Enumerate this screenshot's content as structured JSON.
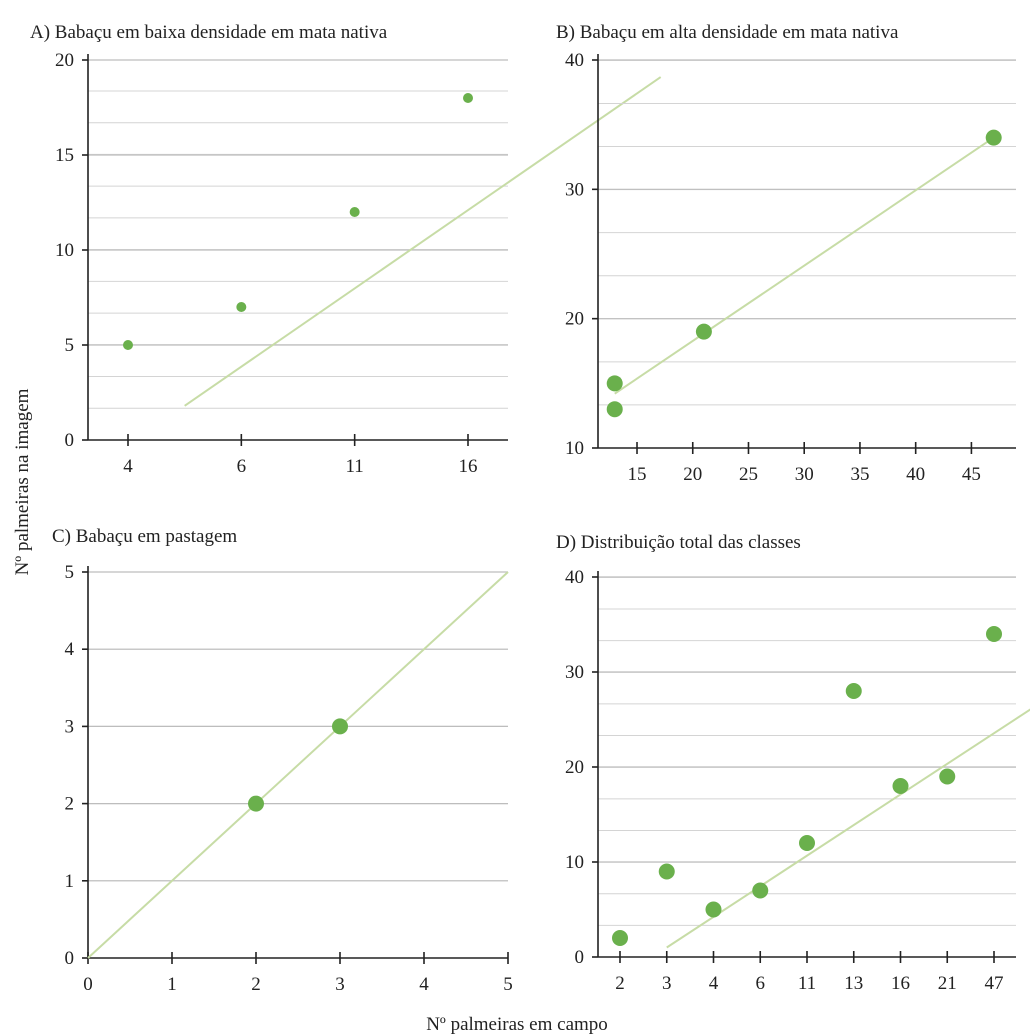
{
  "xlabel": "Nº palmeiras em campo",
  "ylabel": "Nº palmeiras na imagem",
  "colors": {
    "point": "#6ab04c",
    "trend": "#c7dca6",
    "grid": "#d4d4d4",
    "axis": "#222222"
  },
  "chart_data": [
    {
      "type": "scatter",
      "title": "A) Babaçu em baixa densidade em mata nativa",
      "x_axis": "categorical",
      "categories": [
        "4",
        "6",
        "11",
        "16"
      ],
      "points": [
        {
          "x": "4",
          "y": 5
        },
        {
          "x": "6",
          "y": 7
        },
        {
          "x": "11",
          "y": 12
        },
        {
          "x": "16",
          "y": 18
        }
      ],
      "ylim": [
        0,
        20
      ],
      "yticks": [
        0,
        5,
        10,
        15,
        20
      ],
      "ygrid_step": 1.67,
      "trend": [
        [
          0.5,
          1.8
        ],
        [
          4.7,
          19.1
        ]
      ],
      "grid": true
    },
    {
      "type": "scatter",
      "title": "B) Babaçu em alta densidade em mata nativa",
      "x_axis": "numeric",
      "xlim": [
        11.5,
        49
      ],
      "xticks": [
        15,
        20,
        25,
        30,
        35,
        40,
        45
      ],
      "points": [
        {
          "x": 13,
          "y": 15
        },
        {
          "x": 13,
          "y": 13
        },
        {
          "x": 21,
          "y": 19
        },
        {
          "x": 47,
          "y": 34
        }
      ],
      "ylim": [
        10,
        40
      ],
      "yticks": [
        10,
        20,
        30,
        40
      ],
      "ygrid_step": 3.33,
      "trend": [
        [
          13,
          14.2
        ],
        [
          47,
          34
        ]
      ],
      "grid": true
    },
    {
      "type": "scatter",
      "title": "C) Babaçu em pastagem",
      "x_axis": "numeric",
      "xlim": [
        0,
        5
      ],
      "xticks": [
        0,
        1,
        2,
        3,
        4,
        5
      ],
      "points": [
        {
          "x": 2,
          "y": 2
        },
        {
          "x": 3,
          "y": 3
        }
      ],
      "ylim": [
        0,
        5
      ],
      "yticks": [
        0,
        1,
        2,
        3,
        4,
        5
      ],
      "ygrid_step": 1,
      "trend": [
        [
          0,
          0
        ],
        [
          5,
          5
        ]
      ],
      "grid": true
    },
    {
      "type": "scatter",
      "title": "D) Distribuição total das classes",
      "x_axis": "categorical",
      "categories": [
        "2",
        "3",
        "4",
        "6",
        "11",
        "13",
        "16",
        "21",
        "47"
      ],
      "points": [
        {
          "x": "2",
          "y": 2
        },
        {
          "x": "3",
          "y": 9
        },
        {
          "x": "4",
          "y": 5
        },
        {
          "x": "6",
          "y": 7
        },
        {
          "x": "11",
          "y": 12
        },
        {
          "x": "13",
          "y": 28
        },
        {
          "x": "16",
          "y": 18
        },
        {
          "x": "21",
          "y": 19
        },
        {
          "x": "47",
          "y": 34
        }
      ],
      "ylim": [
        0,
        40
      ],
      "yticks": [
        0,
        10,
        20,
        30,
        40
      ],
      "ygrid_step": 3.33,
      "trend": [
        [
          1,
          1
        ],
        [
          10,
          30
        ]
      ],
      "grid": true
    }
  ]
}
